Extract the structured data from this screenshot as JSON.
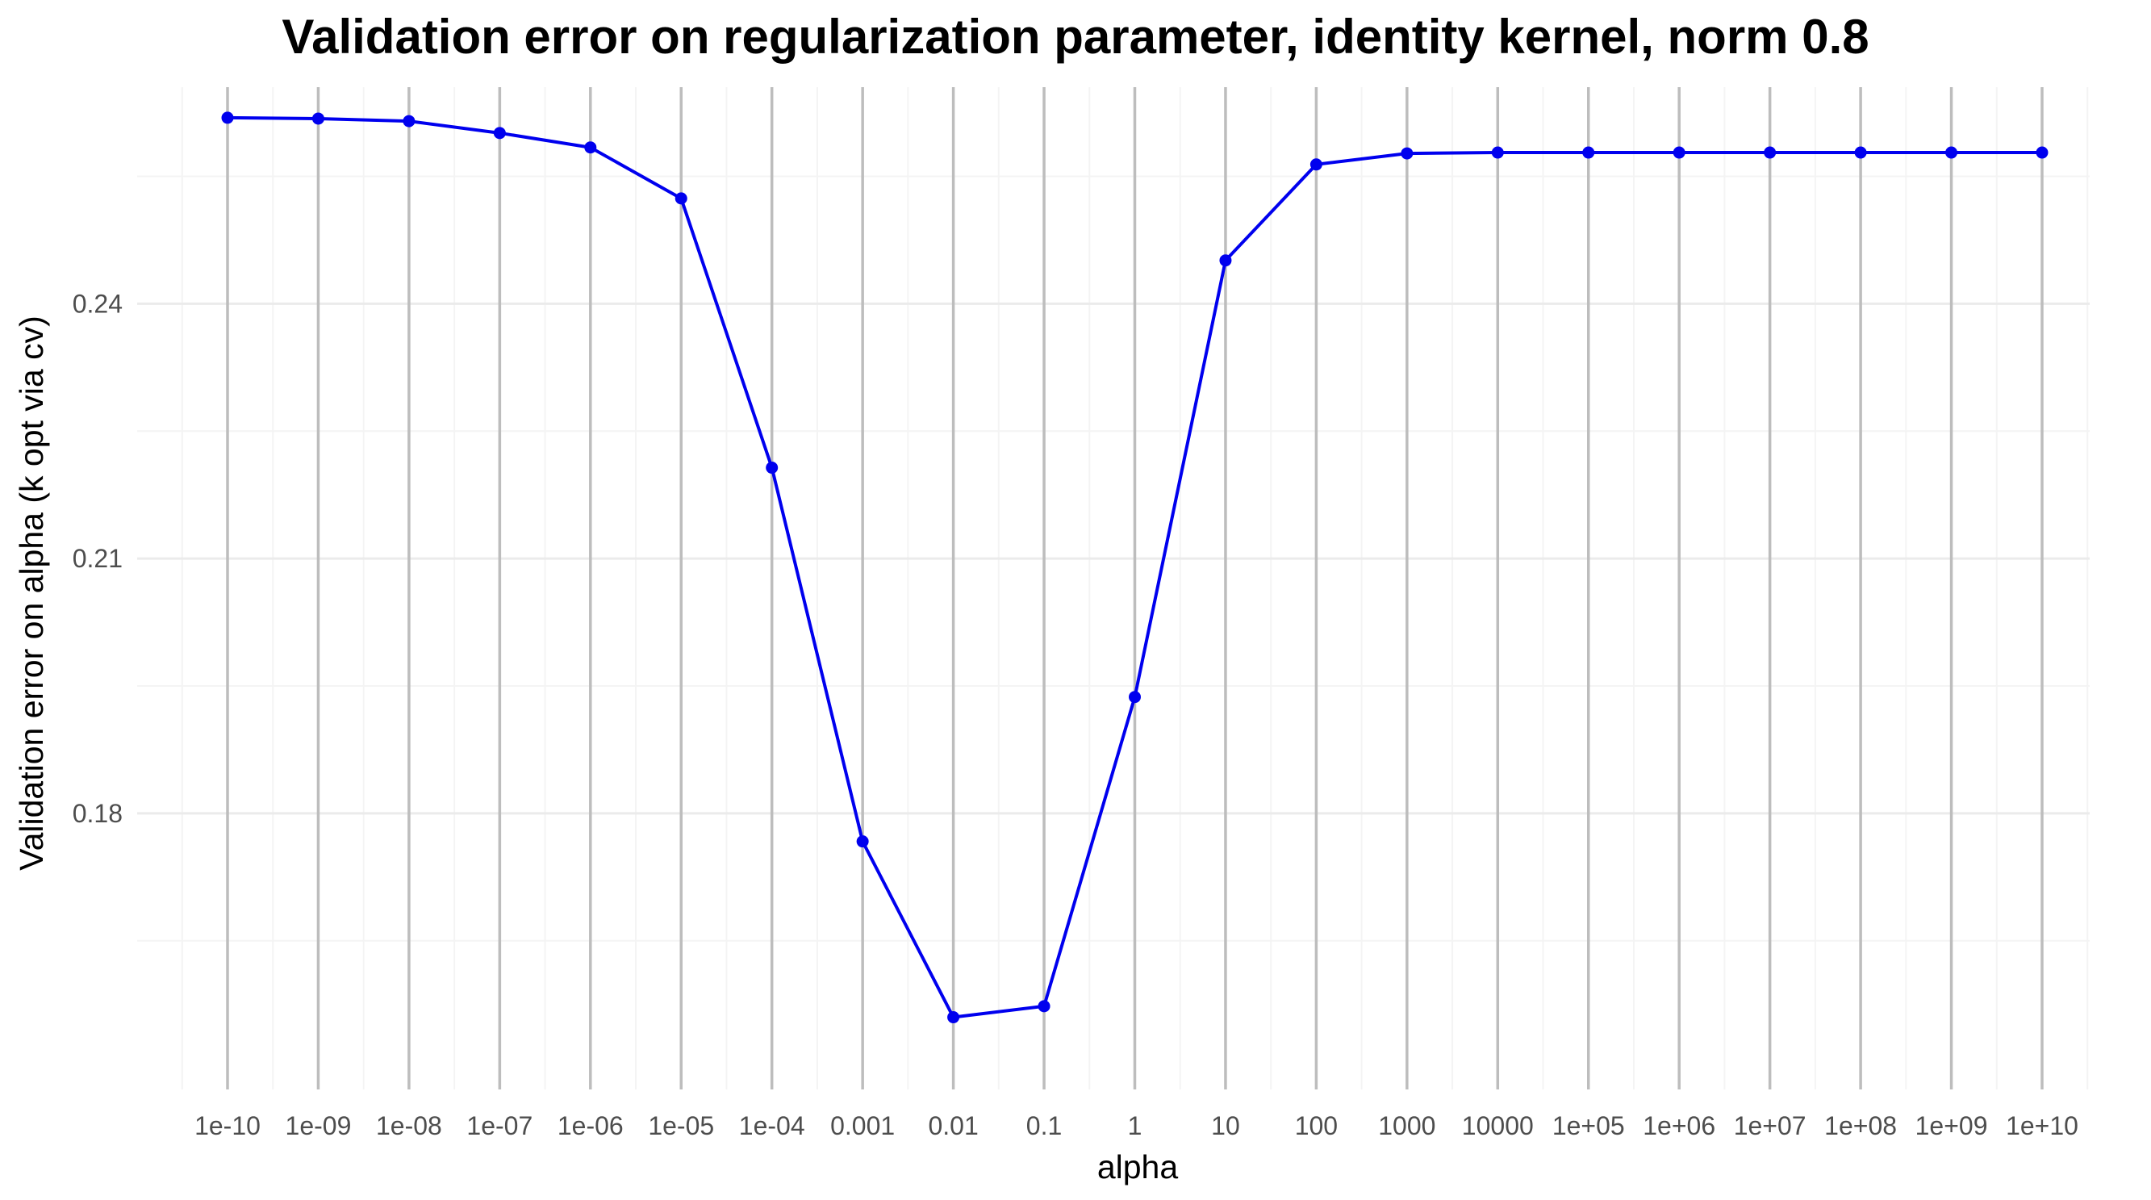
{
  "chart_data": {
    "type": "line",
    "title": "Validation error on regularization parameter, identity kernel, norm 0.8",
    "xlabel": "alpha",
    "ylabel": "Validation error on alpha (k opt via cv)",
    "categories": [
      "1e-10",
      "1e-09",
      "1e-08",
      "1e-07",
      "1e-06",
      "1e-05",
      "1e-04",
      "0.001",
      "0.01",
      "0.1",
      "1",
      "10",
      "100",
      "1000",
      "10000",
      "1e+05",
      "1e+06",
      "1e+07",
      "1e+08",
      "1e+09",
      "1e+10"
    ],
    "series": [
      {
        "values": [
          0.2619,
          0.2618,
          0.2615,
          0.2601,
          0.2584,
          0.2524,
          0.2207,
          0.1767,
          0.156,
          0.1573,
          0.1937,
          0.2451,
          0.2564,
          0.2577,
          0.2578,
          0.2578,
          0.2578,
          0.2578,
          0.2578,
          0.2578,
          0.2578
        ],
        "color": "#0000ee"
      }
    ],
    "y_ticks": [
      0.18,
      0.21,
      0.24
    ],
    "ylim": [
      0.1475,
      0.2655
    ],
    "grid": true,
    "legend": "none",
    "colors": {
      "line": "#0000ee",
      "grid_major_horizontal": "#ebebeb",
      "grid_major_vertical": "#bdbdbd",
      "grid_minor": "#f4f4f4",
      "tick_label": "#4d4d4d"
    }
  }
}
